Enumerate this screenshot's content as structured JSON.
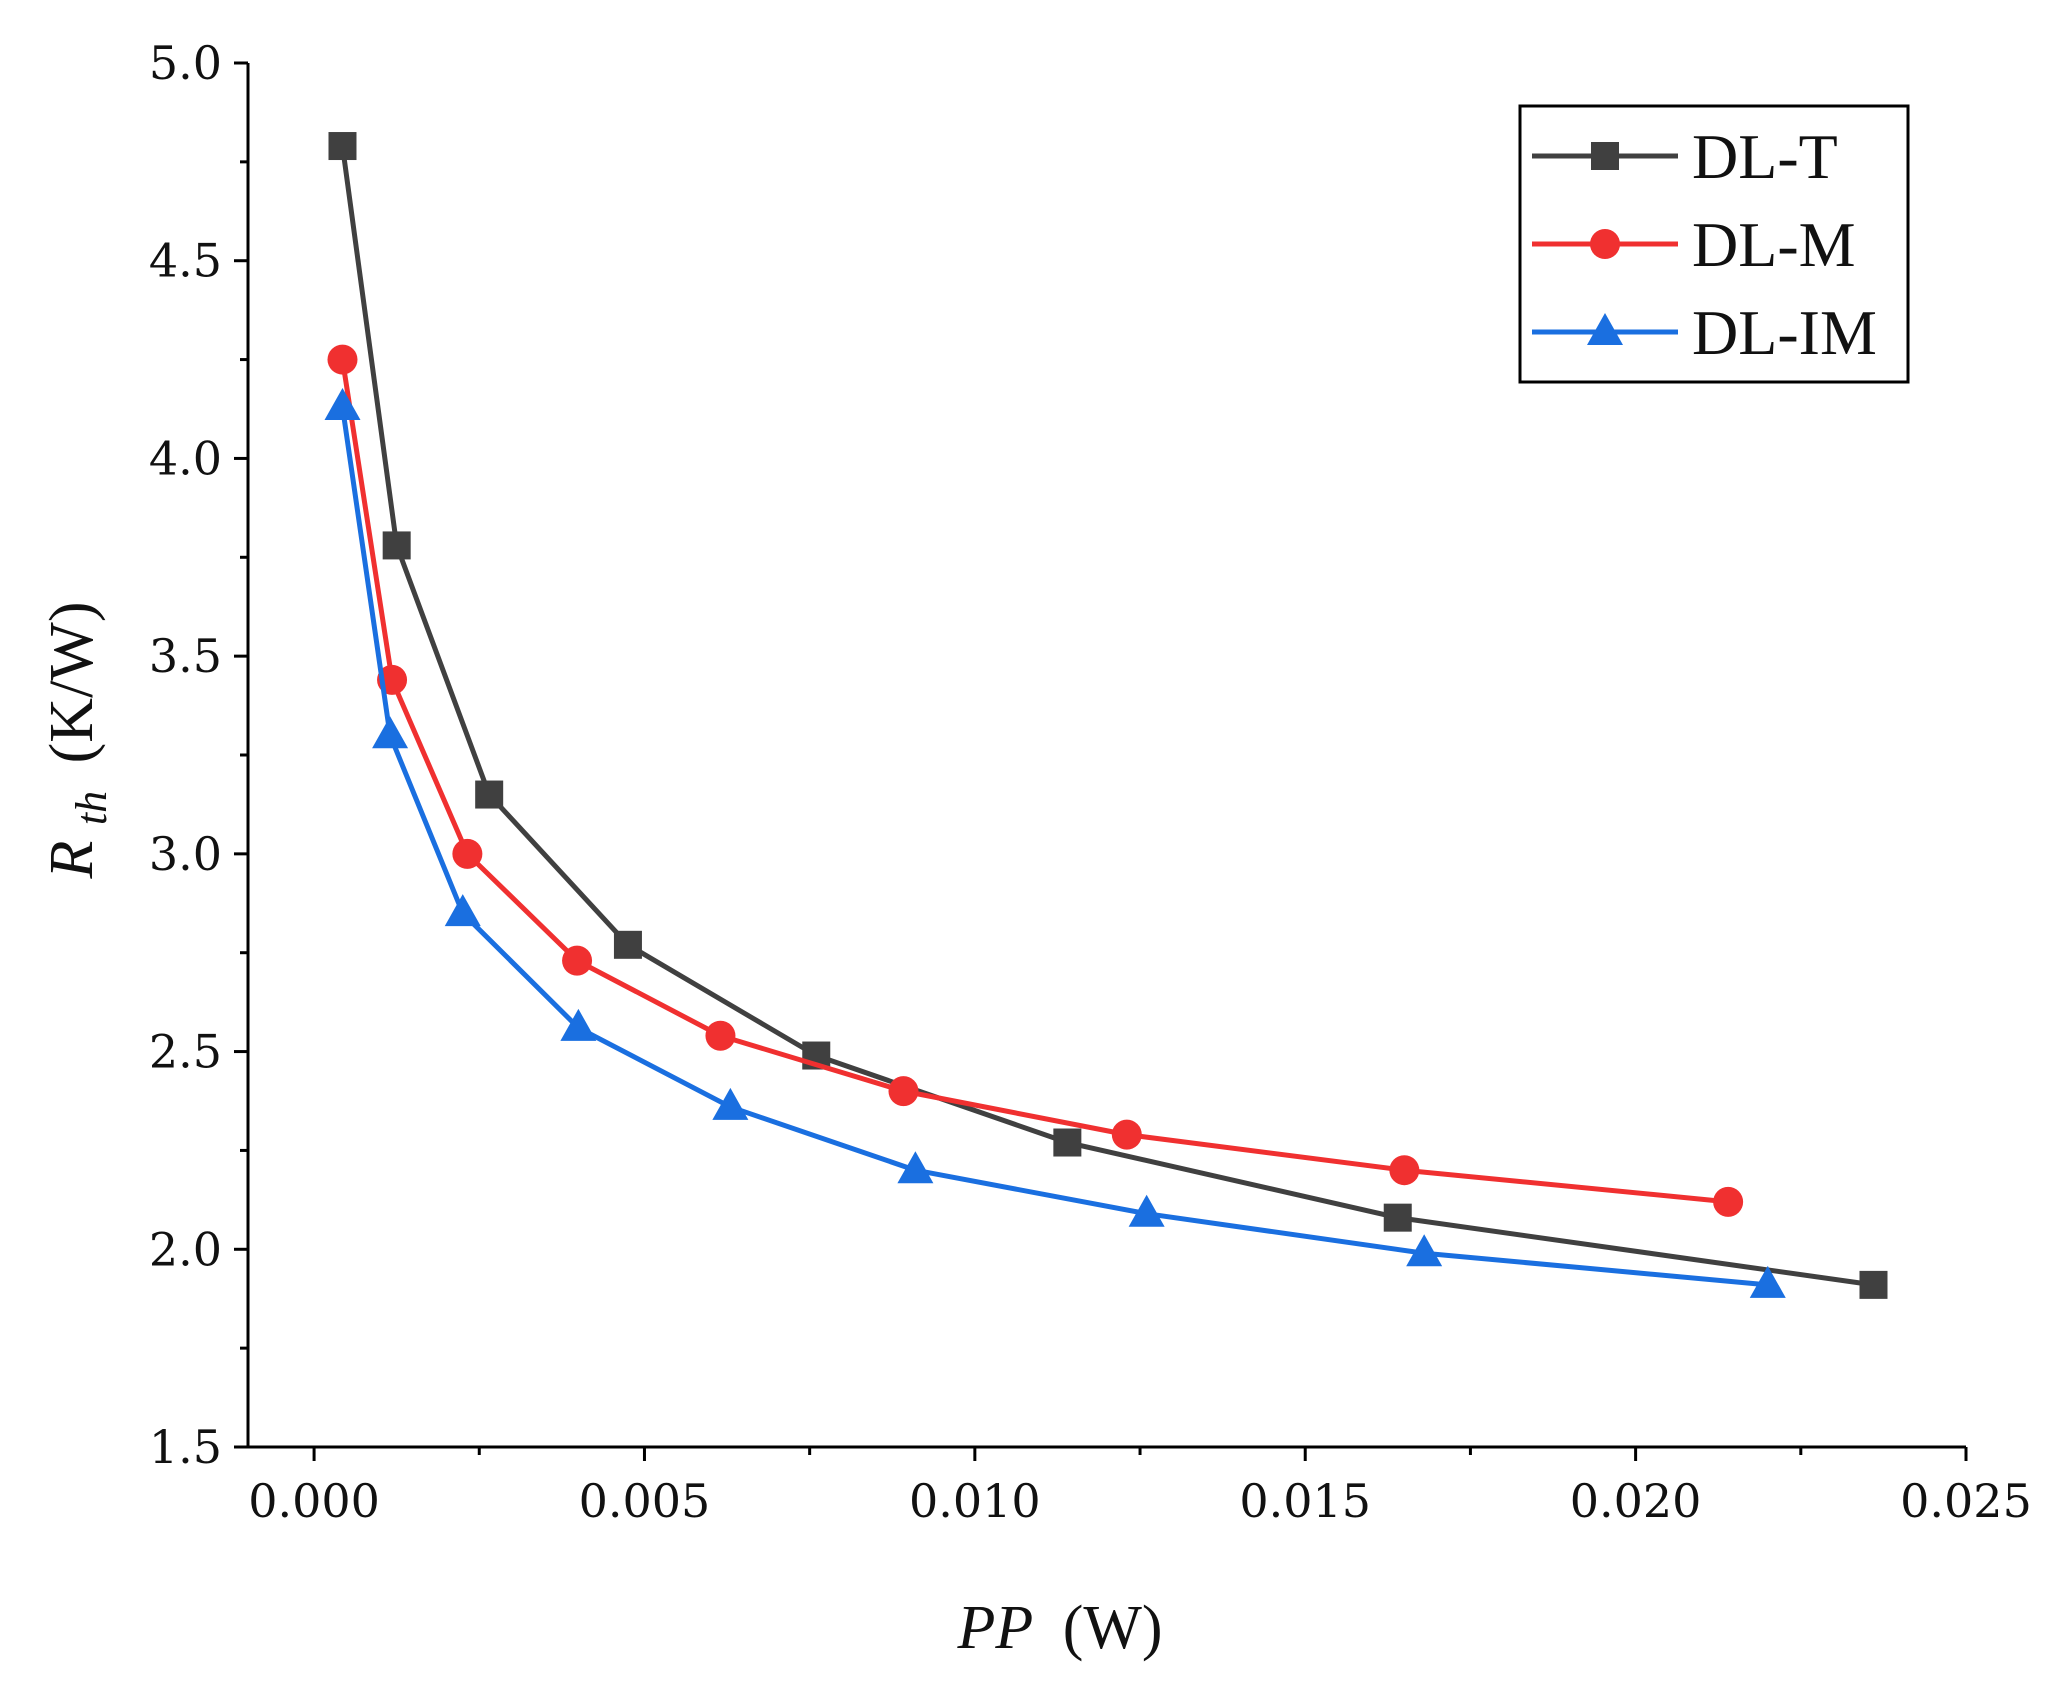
{
  "chart_data": {
    "type": "line",
    "title": "",
    "xlabel": "PP (W)",
    "xlabel_italic": "PP",
    "xlabel_unit": "(W)",
    "ylabel_main": "R",
    "ylabel_sub": "th",
    "ylabel_unit": "(K/W)",
    "xlim": [
      -0.001,
      0.025
    ],
    "ylim": [
      1.5,
      5.0
    ],
    "xticks": [
      0.0,
      0.005,
      0.01,
      0.015,
      0.02,
      0.025
    ],
    "xtick_labels": [
      "0.000",
      "0.005",
      "0.010",
      "0.015",
      "0.020",
      "0.025"
    ],
    "yticks": [
      1.5,
      2.0,
      2.5,
      3.0,
      3.5,
      4.0,
      4.5,
      5.0
    ],
    "ytick_labels": [
      "1.5",
      "2.0",
      "2.5",
      "3.0",
      "3.5",
      "4.0",
      "4.5",
      "5.0"
    ],
    "legend_position": "top-right",
    "grid": false,
    "series": [
      {
        "name": "DL-T",
        "color": "#404040",
        "marker": "square",
        "x": [
          0.00043,
          0.00125,
          0.00265,
          0.00475,
          0.0076,
          0.0114,
          0.0164,
          0.0236
        ],
        "y": [
          4.79,
          3.78,
          3.15,
          2.77,
          2.49,
          2.27,
          2.08,
          1.91
        ]
      },
      {
        "name": "DL-M",
        "color": "#f03030",
        "marker": "circle",
        "x": [
          0.00043,
          0.00118,
          0.00232,
          0.00398,
          0.00615,
          0.00892,
          0.0123,
          0.0165,
          0.0214
        ],
        "y": [
          4.25,
          3.44,
          3.0,
          2.73,
          2.54,
          2.4,
          2.29,
          2.2,
          2.12
        ]
      },
      {
        "name": "DL-IM",
        "color": "#1a6fe0",
        "marker": "triangle",
        "x": [
          0.00043,
          0.00115,
          0.00225,
          0.004,
          0.0063,
          0.0091,
          0.0126,
          0.0168,
          0.022
        ],
        "y": [
          4.13,
          3.3,
          2.85,
          2.56,
          2.36,
          2.2,
          2.09,
          1.99,
          1.91
        ]
      }
    ]
  }
}
